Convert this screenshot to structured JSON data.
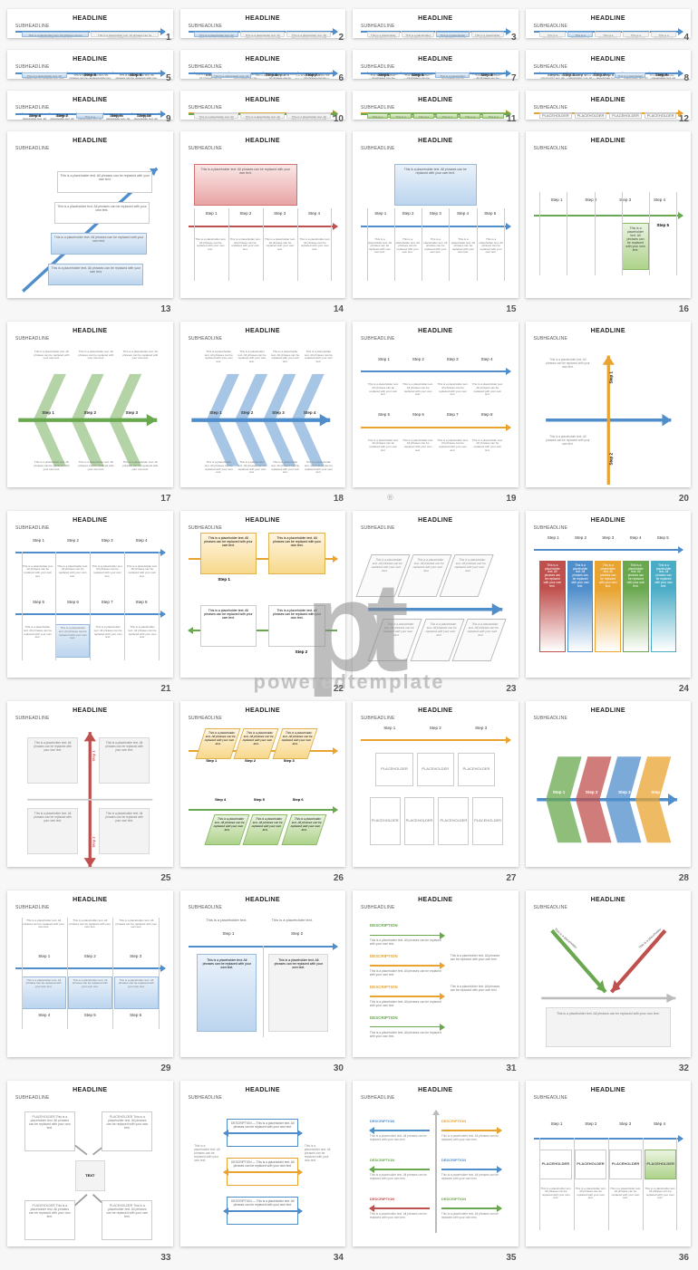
{
  "common": {
    "headline": "HEADLINE",
    "subheadline": "SUBHEADLINE"
  },
  "watermark": {
    "logo": "pt",
    "reg": "®",
    "text": "poweredtemplate"
  },
  "colors": {
    "blue": "#4f8ecb",
    "blue_dk": "#2f6db3",
    "orange": "#e8a330",
    "green": "#6aa84f",
    "red": "#c0504d",
    "grey": "#bcbcbc",
    "grey_lt": "#e8e8e8",
    "ylw": "#f1c232"
  },
  "placeholder_small": "This is a placeholder text. All phrases can be replaced with your own text.",
  "placeholder_word": "PLACEHOLDER",
  "desc_word": "DESCRIPTION",
  "text_word": "TEXT",
  "slides": [
    {
      "n": 1,
      "type": "top_arrow_boxes",
      "steps": [
        "Step 1",
        "Step 2"
      ],
      "step_colors": [
        "blue",
        "grey"
      ],
      "boxes": [
        {
          "cls": "box-blue"
        },
        {
          "cls": "box-grey"
        }
      ]
    },
    {
      "n": 2,
      "type": "top_arrow_boxes",
      "steps": [
        "Step 1",
        "Step 2",
        "Step 3"
      ],
      "boxes": [
        {
          "cls": "box-blue"
        },
        {
          "cls": "box-grey"
        },
        {
          "cls": "box-grey"
        }
      ]
    },
    {
      "n": 3,
      "type": "top_arrow_boxes",
      "steps": [
        "Step 1",
        "Step 2",
        "Step 3",
        "Step 4"
      ],
      "boxes": [
        {
          "cls": "box-grey"
        },
        {
          "cls": "box-grey"
        },
        {
          "cls": "box-blue"
        },
        {
          "cls": "box-grey"
        }
      ]
    },
    {
      "n": 4,
      "type": "top_arrow_boxes",
      "steps": [
        "Step 1",
        "Step 2",
        "Step 3",
        "Step 4",
        "Step 5"
      ],
      "boxes": [
        {
          "cls": "box-grey"
        },
        {
          "cls": "box-blue"
        },
        {
          "cls": "box-grey"
        },
        {
          "cls": "box-grey"
        },
        {
          "cls": "box-grey"
        }
      ]
    },
    {
      "n": 5,
      "type": "mid_arrow_twosided",
      "steps_top": [
        "Step 1",
        "Step 2",
        "Step 3"
      ],
      "steps_bot": [
        "Step 4",
        "Step 5",
        "Step 6"
      ],
      "hi": 4
    },
    {
      "n": 6,
      "type": "mid_arrow_twosided",
      "steps_top": [
        "Step 1",
        "Step 2",
        "Step 3",
        "Step 4"
      ],
      "steps_bot": [
        "Step 5",
        "Step 6",
        "Step 7"
      ],
      "hi": 5,
      "offset_bot": true
    },
    {
      "n": 7,
      "type": "mid_arrow_twosided",
      "steps_top": [
        "Step 1",
        "Step 2",
        "Step 3",
        "Step 4"
      ],
      "steps_bot": [
        "Step5",
        "Step 6",
        "Step 7",
        "Step 8"
      ],
      "hi": 7
    },
    {
      "n": 8,
      "type": "mid_arrow_twosided",
      "steps_top": [
        "Step 1",
        "Step 2",
        "Step 3",
        "Step 4",
        "Step 5"
      ],
      "steps_bot": [
        "Step 6",
        "Step 7",
        "Step 8",
        "Step 9"
      ],
      "hi": 8,
      "offset_bot": true
    },
    {
      "n": 9,
      "type": "mid_arrow_twosided",
      "steps_top": [
        "Step 1",
        "Step 2",
        "Step 3",
        "Step 4",
        "Step 5"
      ],
      "steps_bot": [
        "Step 6",
        "Step 7",
        "Step 8",
        "Step 9",
        "Step 10"
      ],
      "hi": 8
    },
    {
      "n": 10,
      "type": "two_arrows",
      "top_color": "orange",
      "bot_color": "green",
      "top_steps": [
        "Step 1",
        "Step 2",
        "Step 3"
      ],
      "top_boxes": [
        {
          "cls": "box-grey"
        },
        {
          "cls": "box-ylw"
        },
        {
          "cls": "box-grey"
        }
      ],
      "bot_steps": [
        "Step 4",
        "Step 5",
        "Step 6"
      ],
      "bot_boxes": [
        {
          "cls": "box-grey"
        },
        {
          "cls": "box-grey"
        },
        {
          "cls": "box-grey"
        }
      ]
    },
    {
      "n": 11,
      "type": "two_arrows",
      "top_color": "orange",
      "bot_color": "green",
      "top_steps": [
        "Step 1"
      ],
      "top_boxes": [
        {
          "cls": "box-grn",
          "wide": true
        }
      ],
      "bot_steps": [
        "Step 4",
        "Step 5",
        "Step 6",
        "Step 7",
        "Step 8",
        "Step 9"
      ],
      "bot_boxes": [
        {
          "cls": "box-grn"
        },
        {
          "cls": "box-grn"
        },
        {
          "cls": "box-grn"
        },
        {
          "cls": "box-grn"
        },
        {
          "cls": "box-grn"
        },
        {
          "cls": "box-grn"
        }
      ]
    },
    {
      "n": 12,
      "type": "placeholder_grid",
      "top_steps": [
        "Step 1",
        "Step 2",
        "Step 3",
        "Step 4"
      ],
      "rows": 2,
      "cols": 4
    },
    {
      "n": 13,
      "type": "diagonal"
    },
    {
      "n": 14,
      "type": "mid_single_box",
      "color": "red",
      "steps": [
        "Step 1",
        "Step 2",
        "Step 3",
        "Step 4"
      ],
      "box_cls": "box-red",
      "box_span": [
        0,
        2
      ]
    },
    {
      "n": 15,
      "type": "mid_single_box",
      "color": "blue",
      "steps": [
        "Step 1",
        "Step 2",
        "Step 3",
        "Step 4",
        "Step 5"
      ],
      "box_cls": "box-blue",
      "box_span": [
        1,
        3
      ]
    },
    {
      "n": 16,
      "type": "mid_step_drop",
      "steps": [
        "Step 1",
        "Step 2",
        "Step 3",
        "Step 4",
        "Step 5"
      ],
      "hi": 3
    },
    {
      "n": 17,
      "type": "fishbone",
      "color": "green",
      "steps": [
        "Step 1",
        "Step 2",
        "Step 3"
      ]
    },
    {
      "n": 18,
      "type": "fishbone",
      "color": "blue",
      "steps": [
        "Step 1",
        "Step 2",
        "Step 3",
        "Step 4"
      ]
    },
    {
      "n": 19,
      "type": "fishbone_two",
      "top_color": "blue",
      "bot_color": "orange",
      "top_steps": [
        "Step 1",
        "Step 2",
        "Step 3",
        "Step 4"
      ],
      "bot_steps": [
        "Step 5",
        "Step 6",
        "Step 7",
        "Step 8"
      ]
    },
    {
      "n": 20,
      "type": "cross",
      "v_labels": [
        "Step 1",
        "Step 2"
      ],
      "h_color": "blue",
      "v_color": "orange"
    },
    {
      "n": 21,
      "type": "double_h",
      "steps_top": [
        "Step 1",
        "Step 2",
        "Step 3",
        "Step 4"
      ],
      "steps_bot": [
        "Step 5",
        "Step 6",
        "Step 7",
        "Step 8"
      ],
      "hi": 6
    },
    {
      "n": 22,
      "type": "bidir",
      "top": {
        "cls": "box-ylw",
        "label": "Step 1"
      },
      "bot": {
        "cls": "box-ylw",
        "label": "Step 2"
      },
      "top_color": "orange",
      "bot_color": "green"
    },
    {
      "n": 23,
      "type": "parallelogram",
      "color": "blue",
      "rows": 2,
      "cols": 3
    },
    {
      "n": 24,
      "type": "color_strip",
      "steps": [
        "Step 1",
        "Step 2",
        "Step 3",
        "Step 4",
        "Step 5"
      ],
      "cols": [
        "#c0504d",
        "#4f8ecb",
        "#e8a330",
        "#6aa84f",
        "#4bacc6"
      ]
    },
    {
      "n": 25,
      "type": "cross_red"
    },
    {
      "n": 26,
      "type": "para_stairs",
      "top_color": "orange",
      "bot_color": "green",
      "top_steps": [
        "Step 1",
        "Step 2",
        "Step 3"
      ],
      "bot_steps": [
        "Step 4",
        "Step 5",
        "Step 6"
      ]
    },
    {
      "n": 27,
      "type": "placeholder_card",
      "top_steps": [
        "Step 1",
        "Step 2",
        "Step 3"
      ],
      "rows": 2,
      "cols": 3
    },
    {
      "n": 28,
      "type": "fishbone_color",
      "steps": [
        "Step 1",
        "Step 2",
        "Step 3",
        "Step 4"
      ],
      "cols": [
        "#6aa84f",
        "#c0504d",
        "#4f8ecb",
        "#e8a330"
      ]
    },
    {
      "n": 29,
      "type": "grid_3x2",
      "top_steps": [
        "Step 1",
        "Step 2",
        "Step 3"
      ],
      "bot_steps": [
        "Step 4",
        "Step 5",
        "Step 6"
      ]
    },
    {
      "n": 30,
      "type": "two_boxes",
      "steps": [
        "Step 1",
        "Step 2"
      ]
    },
    {
      "n": 31,
      "type": "desc_arrows",
      "colors": [
        "#6aa84f",
        "#e8a330",
        "#e8a330",
        "#6aa84f"
      ]
    },
    {
      "n": 32,
      "type": "v_arrows",
      "colors": [
        "#6aa84f",
        "#c0504d"
      ]
    },
    {
      "n": 33,
      "type": "quad_text"
    },
    {
      "n": 34,
      "type": "desc_center",
      "colors": [
        "#4f8ecb",
        "#e8a330",
        "#4f8ecb"
      ]
    },
    {
      "n": 35,
      "type": "desc_split",
      "left": [
        "#4f8ecb",
        "#6aa84f",
        "#c0504d"
      ],
      "right": [
        "#e8a330",
        "#4f8ecb",
        "#6aa84f"
      ]
    },
    {
      "n": 36,
      "type": "bottom_boxes",
      "steps": [
        "Step 1",
        "Step 2",
        "Step 3",
        "Step 4"
      ]
    }
  ]
}
